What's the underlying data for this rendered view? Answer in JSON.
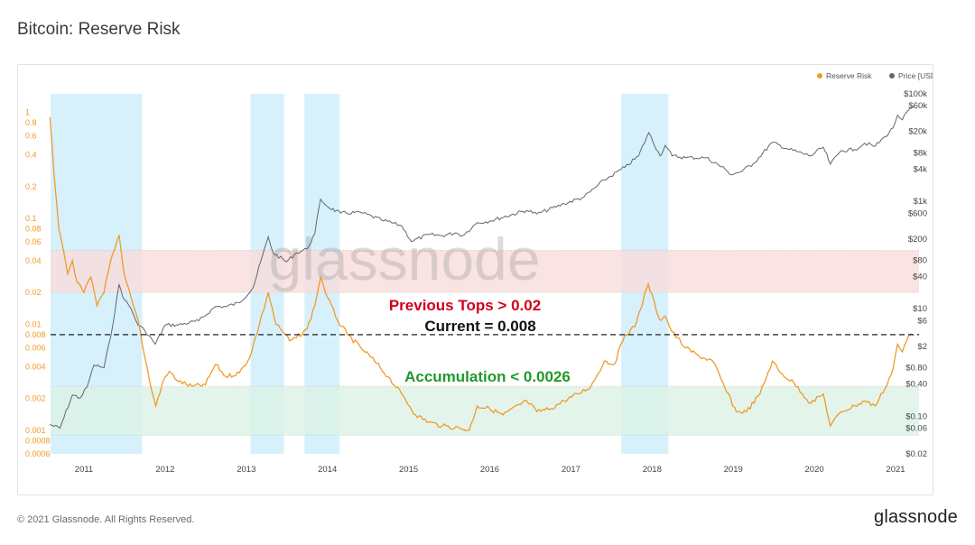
{
  "page": {
    "title": "Bitcoin: Reserve Risk",
    "copyright": "© 2021 Glassnode. All Rights Reserved.",
    "logo": "glassnode"
  },
  "colors": {
    "reserve_risk": "#f09a28",
    "price": "#666666",
    "highlight": "#cfeffc",
    "top_band": "#f9dcdc",
    "accumulation_band": "#dcf3e6",
    "tops_text": "#d0021b",
    "accumulation_text": "#1f9a2b",
    "current_text": "#111111"
  },
  "chart_data": {
    "type": "line",
    "x_axis": {
      "type": "date",
      "ticks": [
        "2011",
        "2012",
        "2013",
        "2014",
        "2015",
        "2016",
        "2017",
        "2018",
        "2019",
        "2020",
        "2021"
      ]
    },
    "y_left": {
      "scale": "log",
      "range": [
        0.0006,
        1.5
      ],
      "ticks": [
        "1",
        "0.8",
        "0.6",
        "0.4",
        "0.2",
        "0.1",
        "0.08",
        "0.06",
        "0.04",
        "0.02",
        "0.01",
        "0.008",
        "0.006",
        "0.004",
        "0.002",
        "0.001",
        "0.0008",
        "0.0006"
      ],
      "tick_values": [
        1,
        0.8,
        0.6,
        0.4,
        0.2,
        0.1,
        0.08,
        0.06,
        0.04,
        0.02,
        0.01,
        0.008,
        0.006,
        0.004,
        0.002,
        0.001,
        0.0008,
        0.0006
      ]
    },
    "y_right": {
      "scale": "log",
      "range": [
        0.02,
        100000
      ],
      "ticks": [
        "$100k",
        "$60k",
        "$20k",
        "$8k",
        "$4k",
        "$1k",
        "$600",
        "$200",
        "$80",
        "$40",
        "$10",
        "$6",
        "$2",
        "$0.80",
        "$0.40",
        "$0.10",
        "$0.06",
        "$0.02"
      ],
      "tick_values": [
        100000,
        60000,
        20000,
        8000,
        4000,
        1000,
        600,
        200,
        80,
        40,
        10,
        6,
        2,
        0.8,
        0.4,
        0.1,
        0.06,
        0.02
      ]
    },
    "legend": {
      "position": "top-right",
      "items": [
        "Reserve Risk",
        "Price [USD]"
      ]
    },
    "series": [
      {
        "name": "Reserve Risk",
        "axis": "left",
        "points": [
          [
            "2010-08-01",
            0.9
          ],
          [
            "2010-08-20",
            0.25
          ],
          [
            "2010-09-10",
            0.08
          ],
          [
            "2010-10-01",
            0.05
          ],
          [
            "2010-10-20",
            0.03
          ],
          [
            "2010-11-10",
            0.04
          ],
          [
            "2010-12-01",
            0.025
          ],
          [
            "2011-01-01",
            0.02
          ],
          [
            "2011-02-01",
            0.028
          ],
          [
            "2011-03-01",
            0.015
          ],
          [
            "2011-04-01",
            0.02
          ],
          [
            "2011-05-01",
            0.04
          ],
          [
            "2011-06-08",
            0.07
          ],
          [
            "2011-07-01",
            0.03
          ],
          [
            "2011-08-01",
            0.018
          ],
          [
            "2011-09-01",
            0.011
          ],
          [
            "2011-10-01",
            0.005
          ],
          [
            "2011-11-01",
            0.0024
          ],
          [
            "2011-11-20",
            0.0017
          ],
          [
            "2011-12-20",
            0.0028
          ],
          [
            "2012-01-20",
            0.0036
          ],
          [
            "2012-03-01",
            0.0029
          ],
          [
            "2012-05-01",
            0.0026
          ],
          [
            "2012-07-01",
            0.0027
          ],
          [
            "2012-08-15",
            0.0042
          ],
          [
            "2012-10-01",
            0.0032
          ],
          [
            "2012-12-01",
            0.0035
          ],
          [
            "2013-01-15",
            0.0048
          ],
          [
            "2013-03-01",
            0.01
          ],
          [
            "2013-04-10",
            0.02
          ],
          [
            "2013-05-15",
            0.01
          ],
          [
            "2013-06-15",
            0.0085
          ],
          [
            "2013-07-15",
            0.007
          ],
          [
            "2013-08-15",
            0.0075
          ],
          [
            "2013-10-01",
            0.009
          ],
          [
            "2013-11-05",
            0.015
          ],
          [
            "2013-12-01",
            0.028
          ],
          [
            "2014-01-01",
            0.018
          ],
          [
            "2014-02-15",
            0.011
          ],
          [
            "2014-04-01",
            0.008
          ],
          [
            "2014-06-01",
            0.006
          ],
          [
            "2014-08-01",
            0.0045
          ],
          [
            "2014-10-01",
            0.0032
          ],
          [
            "2014-12-01",
            0.0022
          ],
          [
            "2015-02-01",
            0.0014
          ],
          [
            "2015-04-01",
            0.0012
          ],
          [
            "2015-06-01",
            0.0011
          ],
          [
            "2015-08-20",
            0.00105
          ],
          [
            "2015-10-01",
            0.001
          ],
          [
            "2015-11-05",
            0.0017
          ],
          [
            "2016-01-01",
            0.0016
          ],
          [
            "2016-03-01",
            0.0014
          ],
          [
            "2016-06-15",
            0.0019
          ],
          [
            "2016-08-01",
            0.0015
          ],
          [
            "2016-10-01",
            0.0016
          ],
          [
            "2016-12-01",
            0.0019
          ],
          [
            "2017-02-01",
            0.0022
          ],
          [
            "2017-04-01",
            0.0026
          ],
          [
            "2017-06-01",
            0.0045
          ],
          [
            "2017-07-15",
            0.0042
          ],
          [
            "2017-09-01",
            0.008
          ],
          [
            "2017-10-15",
            0.0095
          ],
          [
            "2017-12-15",
            0.024
          ],
          [
            "2018-02-05",
            0.011
          ],
          [
            "2018-03-01",
            0.012
          ],
          [
            "2018-04-01",
            0.0085
          ],
          [
            "2018-06-01",
            0.006
          ],
          [
            "2018-08-01",
            0.005
          ],
          [
            "2018-10-01",
            0.0045
          ],
          [
            "2018-11-25",
            0.0025
          ],
          [
            "2019-01-15",
            0.0015
          ],
          [
            "2019-03-01",
            0.0015
          ],
          [
            "2019-05-01",
            0.0022
          ],
          [
            "2019-06-26",
            0.0045
          ],
          [
            "2019-08-01",
            0.0035
          ],
          [
            "2019-10-01",
            0.0028
          ],
          [
            "2019-12-15",
            0.0018
          ],
          [
            "2020-02-10",
            0.0022
          ],
          [
            "2020-03-13",
            0.0011
          ],
          [
            "2020-05-01",
            0.0015
          ],
          [
            "2020-07-01",
            0.0017
          ],
          [
            "2020-08-15",
            0.0019
          ],
          [
            "2020-10-01",
            0.0017
          ],
          [
            "2020-11-15",
            0.0025
          ],
          [
            "2020-12-20",
            0.0038
          ],
          [
            "2021-01-10",
            0.0065
          ],
          [
            "2021-02-01",
            0.0055
          ],
          [
            "2021-03-01",
            0.0078
          ],
          [
            "2021-03-25",
            0.008
          ]
        ]
      },
      {
        "name": "Price [USD]",
        "axis": "right",
        "points": [
          [
            "2010-08-01",
            0.07
          ],
          [
            "2010-09-15",
            0.06
          ],
          [
            "2010-11-10",
            0.25
          ],
          [
            "2010-12-15",
            0.22
          ],
          [
            "2011-01-15",
            0.35
          ],
          [
            "2011-02-15",
            0.9
          ],
          [
            "2011-04-01",
            0.8
          ],
          [
            "2011-05-01",
            3
          ],
          [
            "2011-06-08",
            28
          ],
          [
            "2011-07-01",
            15
          ],
          [
            "2011-08-01",
            10
          ],
          [
            "2011-09-01",
            5
          ],
          [
            "2011-10-01",
            4
          ],
          [
            "2011-11-18",
            2.2
          ],
          [
            "2012-01-01",
            5
          ],
          [
            "2012-03-01",
            5
          ],
          [
            "2012-06-01",
            6
          ],
          [
            "2012-08-15",
            11
          ],
          [
            "2012-10-01",
            11
          ],
          [
            "2012-12-01",
            13
          ],
          [
            "2013-02-01",
            25
          ],
          [
            "2013-04-10",
            220
          ],
          [
            "2013-05-01",
            110
          ],
          [
            "2013-07-01",
            75
          ],
          [
            "2013-08-15",
            110
          ],
          [
            "2013-10-01",
            130
          ],
          [
            "2013-11-05",
            250
          ],
          [
            "2013-12-01",
            1100
          ],
          [
            "2014-01-01",
            800
          ],
          [
            "2014-03-01",
            600
          ],
          [
            "2014-06-01",
            620
          ],
          [
            "2014-09-01",
            450
          ],
          [
            "2014-12-01",
            350
          ],
          [
            "2015-01-14",
            180
          ],
          [
            "2015-04-01",
            240
          ],
          [
            "2015-06-01",
            230
          ],
          [
            "2015-08-01",
            260
          ],
          [
            "2015-09-01",
            230
          ],
          [
            "2015-11-05",
            400
          ],
          [
            "2016-01-01",
            430
          ],
          [
            "2016-06-15",
            680
          ],
          [
            "2016-08-01",
            580
          ],
          [
            "2016-12-01",
            900
          ],
          [
            "2017-03-01",
            1200
          ],
          [
            "2017-06-01",
            2500
          ],
          [
            "2017-09-01",
            4300
          ],
          [
            "2017-11-01",
            7000
          ],
          [
            "2017-12-17",
            19000
          ],
          [
            "2018-02-06",
            7000
          ],
          [
            "2018-03-01",
            11000
          ],
          [
            "2018-04-01",
            7000
          ],
          [
            "2018-06-01",
            6500
          ],
          [
            "2018-09-01",
            6500
          ],
          [
            "2018-11-25",
            4000
          ],
          [
            "2018-12-15",
            3200
          ],
          [
            "2019-02-01",
            3500
          ],
          [
            "2019-04-01",
            5000
          ],
          [
            "2019-06-26",
            12500
          ],
          [
            "2019-09-01",
            9500
          ],
          [
            "2019-12-15",
            7000
          ],
          [
            "2020-02-10",
            10200
          ],
          [
            "2020-03-13",
            4900
          ],
          [
            "2020-05-01",
            8800
          ],
          [
            "2020-07-01",
            9200
          ],
          [
            "2020-08-15",
            12000
          ],
          [
            "2020-10-01",
            10600
          ],
          [
            "2020-11-15",
            16000
          ],
          [
            "2020-12-20",
            23000
          ],
          [
            "2021-01-10",
            40000
          ],
          [
            "2021-02-01",
            33000
          ],
          [
            "2021-03-01",
            50000
          ],
          [
            "2021-03-25",
            57000
          ]
        ]
      }
    ],
    "highlight_ranges": [
      [
        "2010-08-01",
        "2011-09-20"
      ],
      [
        "2013-01-20",
        "2013-06-20"
      ],
      [
        "2013-09-20",
        "2014-02-25"
      ],
      [
        "2017-08-15",
        "2018-03-15"
      ]
    ],
    "bands": [
      {
        "label": "Previous Tops > 0.02",
        "range": [
          0.02,
          0.05
        ]
      },
      {
        "label": "Accumulation < 0.0026",
        "range": [
          0.0009,
          0.0026
        ]
      }
    ],
    "reference_line": {
      "label": "Current = 0.008",
      "value": 0.008
    },
    "watermark": "glassnode"
  }
}
